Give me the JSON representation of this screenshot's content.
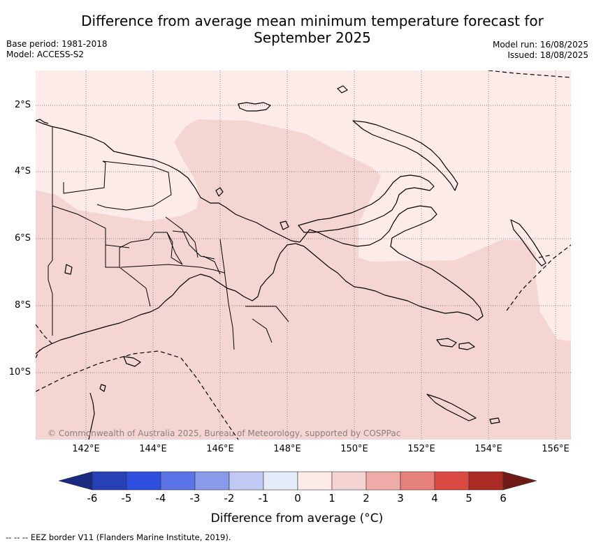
{
  "title": "Difference from average mean minimum temperature forecast for September 2025",
  "title_line1": "Difference from average mean minimum temperature forecast for",
  "title_line2": "September 2025",
  "metadata": {
    "base_period": "Base period: 1981-2018",
    "model": "Model: ACCESS-S2",
    "model_run": "Model run: 16/08/2025",
    "issued": "Issued: 18/08/2025"
  },
  "map": {
    "latitude_ticks": [
      "2°S",
      "4°S",
      "6°S",
      "8°S",
      "10°S"
    ],
    "longitude_ticks": [
      "142°E",
      "144°E",
      "146°E",
      "148°E",
      "150°E",
      "152°E",
      "154°E",
      "156°E"
    ],
    "copyright": "© Commonwealth of Australia 2025, Bureau of Meteorology, supported by COSPPac",
    "dominant_anomaly_ranges": [
      "0 to 1",
      "1 to 2"
    ]
  },
  "colorbar": {
    "title": "Difference from average (°C)",
    "tick_labels": [
      "-6",
      "-5",
      "-4",
      "-3",
      "-2",
      "-1",
      "0",
      "1",
      "2",
      "3",
      "4",
      "5",
      "6"
    ],
    "colors": [
      "#1a2a80",
      "#2640b5",
      "#2f4fe0",
      "#5a74e6",
      "#8a9aea",
      "#c0c8f4",
      "#e6ebfa",
      "#fcebe8",
      "#f5d3d1",
      "#efaca6",
      "#e5807a",
      "#da4a40",
      "#ab2a24",
      "#6e1b18"
    ]
  },
  "legend_note": "-- -- -- EEZ border V11 (Flanders Marine Institute, 2019)."
}
